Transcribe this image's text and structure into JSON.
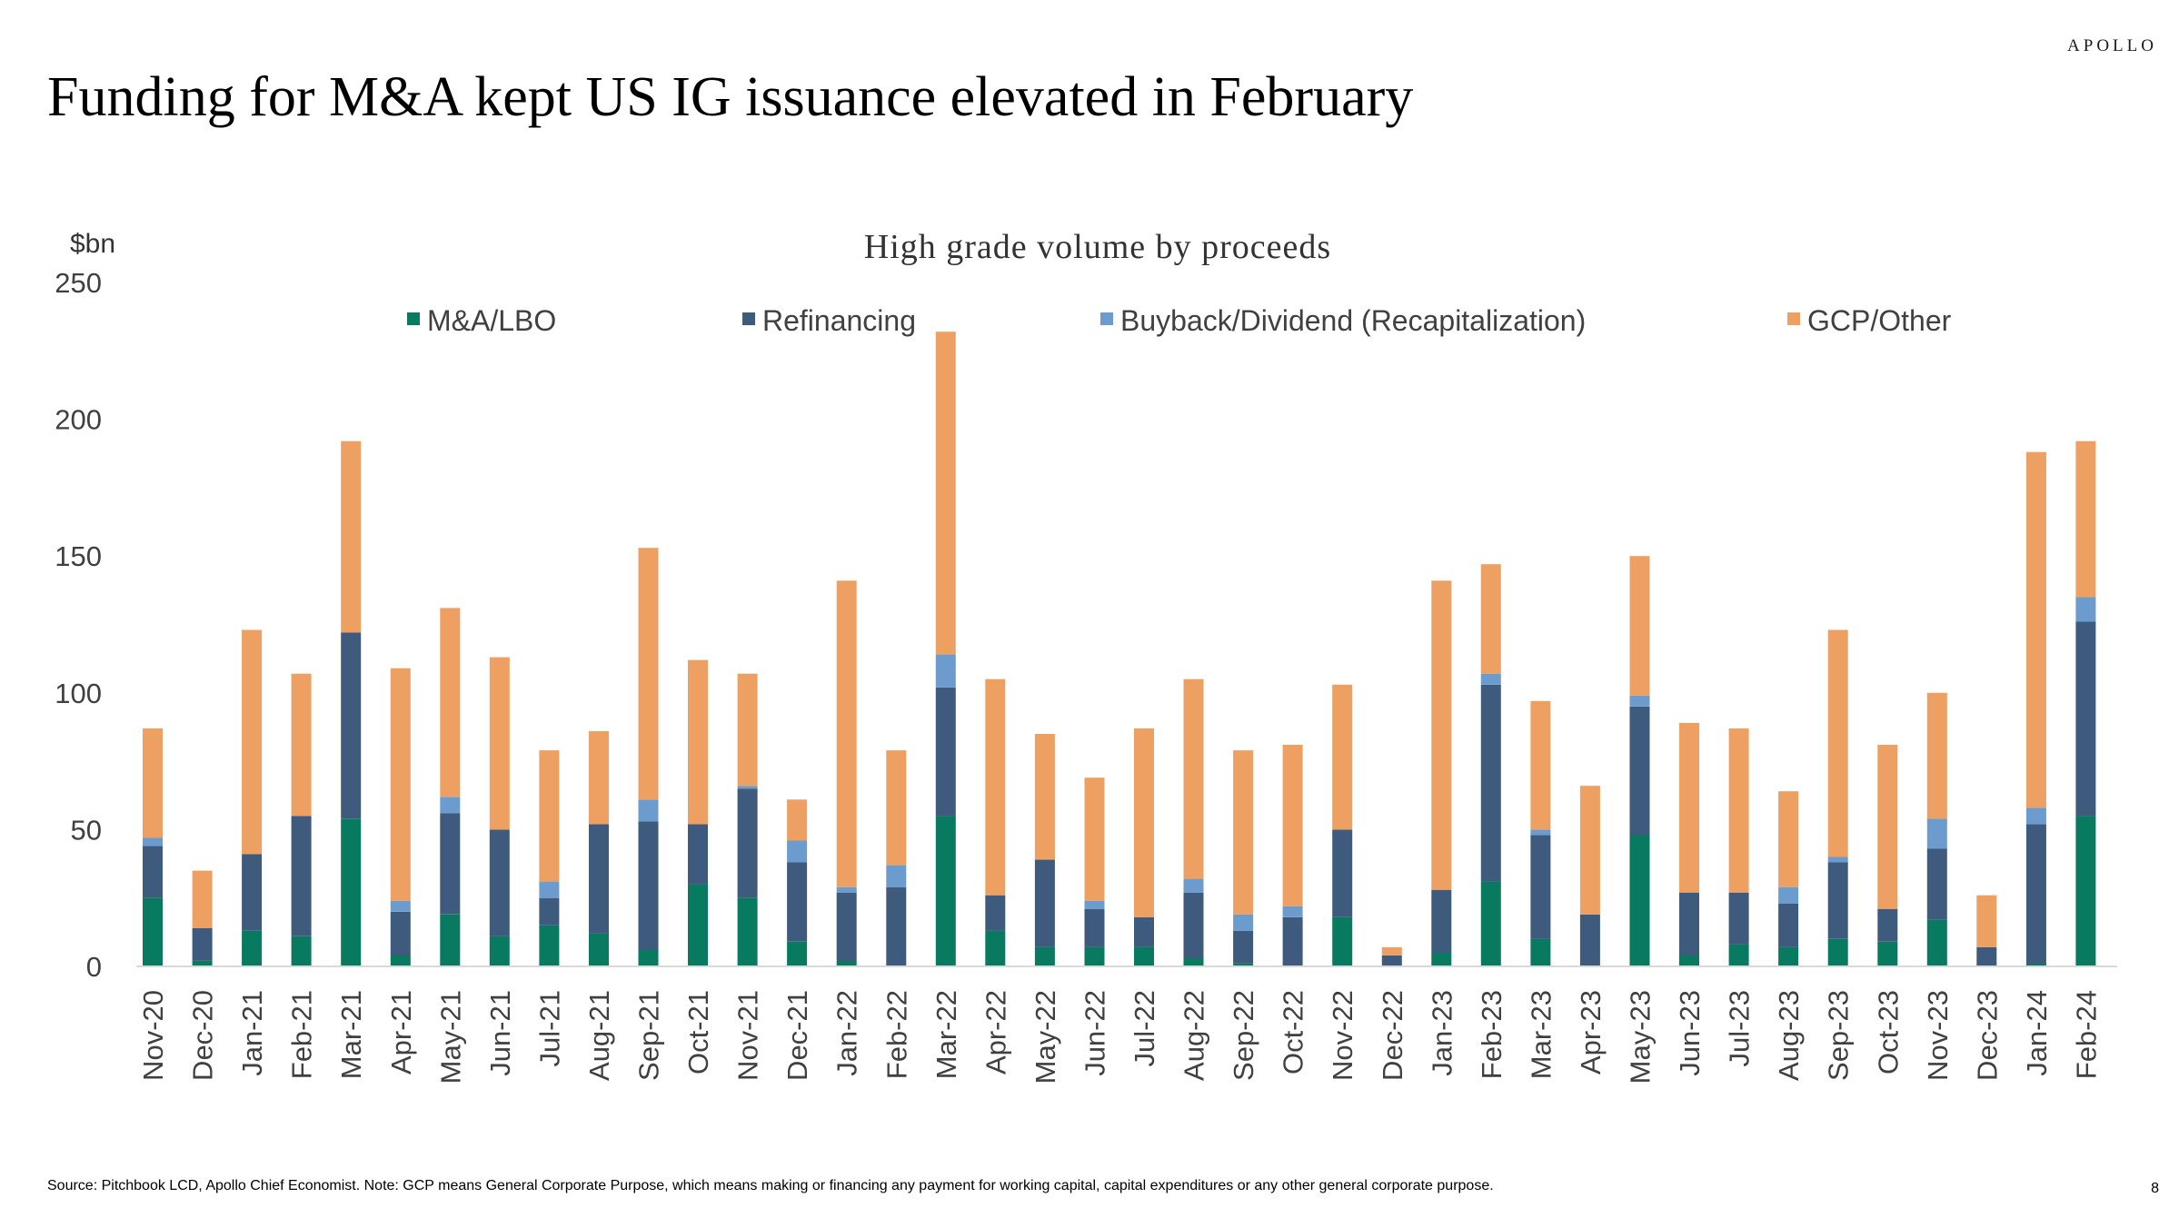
{
  "brand": "APOLLO",
  "title": "Funding for M&A kept US IG issuance elevated in February",
  "source_note": "Source: Pitchbook LCD, Apollo Chief Economist. Note: GCP means General Corporate Purpose, which means making or financing any payment for working capital, capital expenditures or any other general corporate purpose.",
  "page_number": "8",
  "chart_data": {
    "type": "bar",
    "stacked": true,
    "title": "High grade volume by proceeds",
    "ylabel": "$bn",
    "xlabel": "",
    "ylim": [
      0,
      250
    ],
    "yticks": [
      0,
      50,
      100,
      150,
      200,
      250
    ],
    "grid": false,
    "legend_position": "top",
    "categories": [
      "Nov-20",
      "Dec-20",
      "Jan-21",
      "Feb-21",
      "Mar-21",
      "Apr-21",
      "May-21",
      "Jun-21",
      "Jul-21",
      "Aug-21",
      "Sep-21",
      "Oct-21",
      "Nov-21",
      "Dec-21",
      "Jan-22",
      "Feb-22",
      "Mar-22",
      "Apr-22",
      "May-22",
      "Jun-22",
      "Jul-22",
      "Aug-22",
      "Sep-22",
      "Oct-22",
      "Nov-22",
      "Dec-22",
      "Jan-23",
      "Feb-23",
      "Mar-23",
      "Apr-23",
      "May-23",
      "Jun-23",
      "Jul-23",
      "Aug-23",
      "Sep-23",
      "Oct-23",
      "Nov-23",
      "Dec-23",
      "Jan-24",
      "Feb-24"
    ],
    "series": [
      {
        "name": "M&A/LBO",
        "color": "#087a60",
        "values": [
          25,
          2,
          13,
          11,
          54,
          4,
          19,
          11,
          15,
          12,
          6,
          30,
          25,
          9,
          2,
          0,
          55,
          13,
          7,
          7,
          7,
          3,
          1,
          0,
          18,
          0,
          5,
          31,
          10,
          0,
          48,
          4,
          8,
          7,
          10,
          9,
          17,
          0,
          1,
          55
        ]
      },
      {
        "name": "Refinancing",
        "color": "#3e5b7e",
        "values": [
          19,
          12,
          28,
          44,
          68,
          16,
          37,
          39,
          10,
          40,
          47,
          22,
          40,
          29,
          25,
          29,
          47,
          13,
          32,
          14,
          11,
          24,
          12,
          18,
          32,
          4,
          23,
          72,
          38,
          19,
          47,
          23,
          19,
          16,
          28,
          12,
          26,
          7,
          51,
          71
        ]
      },
      {
        "name": "Buyback/Dividend (Recapitalization)",
        "color": "#6b9ccd",
        "values": [
          3,
          0,
          0,
          0,
          0,
          4,
          6,
          0,
          6,
          0,
          8,
          0,
          1,
          8,
          2,
          8,
          12,
          0,
          0,
          3,
          0,
          5,
          6,
          4,
          0,
          0,
          0,
          4,
          2,
          0,
          4,
          0,
          0,
          6,
          2,
          0,
          11,
          0,
          6,
          9
        ]
      },
      {
        "name": "GCP/Other",
        "color": "#eda061",
        "values": [
          40,
          21,
          82,
          52,
          70,
          85,
          69,
          63,
          48,
          34,
          92,
          60,
          41,
          15,
          112,
          42,
          118,
          79,
          46,
          45,
          69,
          73,
          60,
          59,
          53,
          3,
          113,
          40,
          47,
          47,
          51,
          62,
          60,
          35,
          83,
          60,
          46,
          19,
          130,
          57
        ]
      }
    ]
  }
}
